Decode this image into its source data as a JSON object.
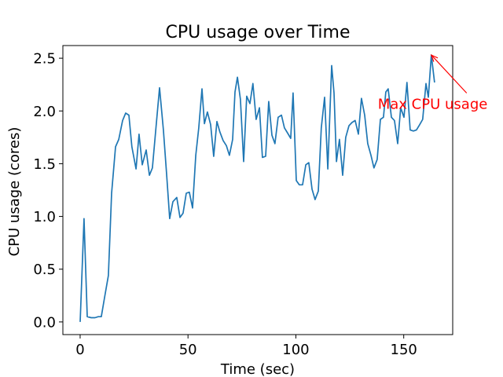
{
  "chart_data": {
    "type": "line",
    "title": "CPU usage over Time",
    "xlabel": "Time (sec)",
    "ylabel": "CPU usage (cores)",
    "xlim": [
      -8.0,
      172.7
    ],
    "ylim": [
      -0.12,
      2.62
    ],
    "xticks": [
      0,
      50,
      100,
      150
    ],
    "yticks": [
      {
        "value": 0,
        "label": "0.0"
      },
      {
        "value": 0.5,
        "label": "0.5"
      },
      {
        "value": 1,
        "label": "1.0"
      },
      {
        "value": 1.5,
        "label": "1.5"
      },
      {
        "value": 2,
        "label": "2.0"
      },
      {
        "value": 2.5,
        "label": "2.5"
      }
    ],
    "grid": false,
    "annotation": {
      "text": "Max CPU usage",
      "xy": [
        162.8,
        2.53
      ],
      "xytext": [
        138,
        2.08
      ],
      "color": "#ff0000"
    },
    "series": [
      {
        "color": "#1f77b4",
        "x": [
          0,
          1.8,
          3.3,
          5.1,
          6.9,
          8.4,
          9.8,
          11.3,
          13.1,
          14.6,
          16.4,
          17.9,
          19.7,
          21.1,
          22.6,
          24.0,
          25.9,
          27.3,
          28.8,
          30.6,
          32.1,
          33.5,
          35.3,
          36.8,
          38.6,
          40.1,
          41.5,
          43.0,
          44.8,
          46.3,
          47.7,
          49.2,
          50.6,
          52.1,
          53.6,
          55.0,
          56.5,
          57.6,
          59.0,
          60.5,
          61.9,
          63.4,
          64.8,
          66.3,
          67.8,
          69.2,
          70.7,
          71.8,
          72.9,
          74.3,
          75.8,
          77.2,
          78.7,
          80.1,
          81.6,
          83.1,
          84.5,
          86.0,
          87.4,
          88.9,
          90.3,
          91.8,
          93.3,
          94.7,
          96.2,
          97.6,
          98.7,
          100.2,
          101.6,
          103.1,
          104.6,
          106.0,
          107.5,
          108.9,
          110.4,
          111.8,
          113.3,
          114.8,
          116.6,
          117.7,
          118.8,
          120.2,
          121.7,
          123.1,
          124.6,
          126.0,
          127.5,
          129.0,
          130.4,
          131.9,
          133.3,
          134.8,
          136.2,
          137.7,
          139.2,
          140.6,
          141.7,
          142.8,
          144.3,
          145.7,
          147.2,
          148.6,
          150.1,
          151.5,
          153.0,
          154.5,
          155.9,
          157.4,
          158.8,
          160.3,
          161.4,
          162.8,
          164.3
        ],
        "values": [
          0,
          0.98,
          0.05,
          0.04,
          0.04,
          0.05,
          0.05,
          0.23,
          0.44,
          1.22,
          1.66,
          1.73,
          1.91,
          1.98,
          1.96,
          1.66,
          1.45,
          1.78,
          1.49,
          1.63,
          1.39,
          1.46,
          1.88,
          2.22,
          1.82,
          1.4,
          0.98,
          1.14,
          1.18,
          0.99,
          1.03,
          1.22,
          1.23,
          1.08,
          1.58,
          1.84,
          2.21,
          1.88,
          1.99,
          1.87,
          1.57,
          1.9,
          1.8,
          1.72,
          1.67,
          1.58,
          1.73,
          2.18,
          2.32,
          2.11,
          1.52,
          2.14,
          2.07,
          2.26,
          1.92,
          2.03,
          1.56,
          1.57,
          2.09,
          1.77,
          1.69,
          1.94,
          1.96,
          1.84,
          1.79,
          1.74,
          2.17,
          1.34,
          1.3,
          1.3,
          1.49,
          1.51,
          1.26,
          1.16,
          1.24,
          1.84,
          2.13,
          1.45,
          2.43,
          2.17,
          1.52,
          1.73,
          1.39,
          1.75,
          1.86,
          1.89,
          1.91,
          1.78,
          2.12,
          1.96,
          1.69,
          1.58,
          1.46,
          1.54,
          1.92,
          1.94,
          2.18,
          2.21,
          1.94,
          1.91,
          1.69,
          2.03,
          1.94,
          2.27,
          1.82,
          1.81,
          1.82,
          1.87,
          1.92,
          2.26,
          2.13,
          2.53,
          2.27
        ]
      }
    ]
  }
}
